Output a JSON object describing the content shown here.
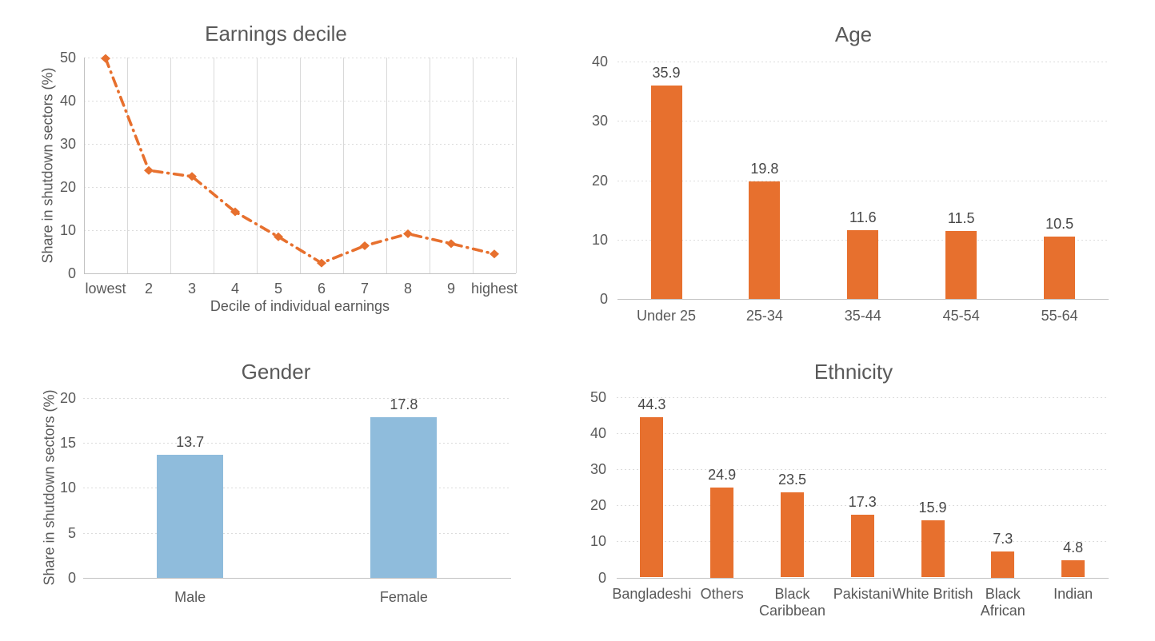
{
  "page": {
    "background": "#ffffff"
  },
  "colors": {
    "orange": "#E7702E",
    "blue": "#8FBCDC",
    "text": "#595959",
    "data_label": "#484848",
    "gridline": "#dcdcdc",
    "axis_line": "#c2c2c2"
  },
  "chart_data": [
    {
      "id": "earnings-decile",
      "type": "line",
      "title": "Earnings decile",
      "xlabel": "Decile of individual earnings",
      "ylabel": "Share in shutdown sectors (%)",
      "categories": [
        "lowest",
        "2",
        "3",
        "4",
        "5",
        "6",
        "7",
        "8",
        "9",
        "highest"
      ],
      "values": [
        49.8,
        23.8,
        22.4,
        14.2,
        8.4,
        2.3,
        6.3,
        9.1,
        6.8,
        4.4
      ],
      "ylim": [
        0,
        50
      ],
      "yticks": [
        0,
        10,
        20,
        30,
        40,
        50
      ],
      "line_color": "#E7702E",
      "line_style": "dash-dot",
      "marker": "diamond",
      "grid": {
        "horizontal": true,
        "vertical": true
      },
      "data_labels": false,
      "legend": "none"
    },
    {
      "id": "age",
      "type": "bar",
      "title": "Age",
      "xlabel": "",
      "ylabel": "",
      "categories": [
        "Under 25",
        "25-34",
        "35-44",
        "45-54",
        "55-64"
      ],
      "values": [
        35.9,
        19.8,
        11.6,
        11.5,
        10.5
      ],
      "ylim": [
        0,
        40
      ],
      "yticks": [
        0,
        10,
        20,
        30,
        40
      ],
      "bar_color": "#E7702E",
      "grid": {
        "horizontal": true,
        "vertical": false
      },
      "data_labels": true,
      "legend": "none"
    },
    {
      "id": "gender",
      "type": "bar",
      "title": "Gender",
      "xlabel": "",
      "ylabel": "Share in shutdown sectors (%)",
      "categories": [
        "Male",
        "Female"
      ],
      "values": [
        13.7,
        17.8
      ],
      "ylim": [
        0,
        20
      ],
      "yticks": [
        0,
        5,
        10,
        15,
        20
      ],
      "bar_color": "#8FBCDC",
      "grid": {
        "horizontal": true,
        "vertical": false
      },
      "data_labels": true,
      "legend": "none"
    },
    {
      "id": "ethnicity",
      "type": "bar",
      "title": "Ethnicity",
      "xlabel": "",
      "ylabel": "",
      "categories": [
        "Bangladeshi",
        "Others",
        "Black\nCaribbean",
        "Pakistani",
        "White British",
        "Black\nAfrican",
        "Indian"
      ],
      "values": [
        44.3,
        24.9,
        23.5,
        17.3,
        15.9,
        7.3,
        4.8
      ],
      "ylim": [
        0,
        50
      ],
      "yticks": [
        0,
        10,
        20,
        30,
        40,
        50
      ],
      "bar_color": "#E7702E",
      "grid": {
        "horizontal": true,
        "vertical": false
      },
      "data_labels": true,
      "legend": "none"
    }
  ]
}
